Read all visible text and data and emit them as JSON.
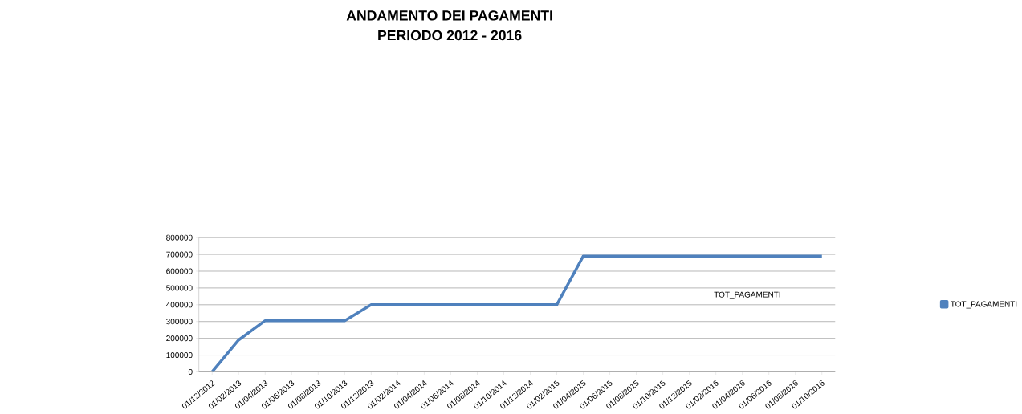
{
  "chart_data": {
    "type": "line",
    "title": "ANDAMENTO DEI PAGAMENTI",
    "subtitle": "PERIODO 2012 - 2016",
    "categories": [
      "01/12/2012",
      "01/02/2013",
      "01/04/2013",
      "01/06/2013",
      "01/08/2013",
      "01/10/2013",
      "01/12/2013",
      "01/02/2014",
      "01/04/2014",
      "01/06/2014",
      "01/08/2014",
      "01/10/2014",
      "01/12/2014",
      "01/02/2015",
      "01/04/2015",
      "01/06/2015",
      "01/08/2015",
      "01/10/2015",
      "01/12/2015",
      "01/02/2016",
      "01/04/2016",
      "01/06/2016",
      "01/08/2016",
      "01/10/2016"
    ],
    "series": [
      {
        "name": "TOT_PAGAMENTI",
        "color": "#4f81bd",
        "values": [
          0,
          190000,
          305000,
          305000,
          305000,
          305000,
          400000,
          400000,
          400000,
          400000,
          400000,
          400000,
          400000,
          400000,
          690000,
          690000,
          690000,
          690000,
          690000,
          690000,
          690000,
          690000,
          690000,
          690000
        ]
      }
    ],
    "ylim": [
      0,
      800000
    ],
    "yticks": [
      0,
      100000,
      200000,
      300000,
      400000,
      500000,
      600000,
      700000,
      800000
    ],
    "grid": "y",
    "legend": "right",
    "annotations": [
      "TOT_PAGAMENTI"
    ]
  }
}
